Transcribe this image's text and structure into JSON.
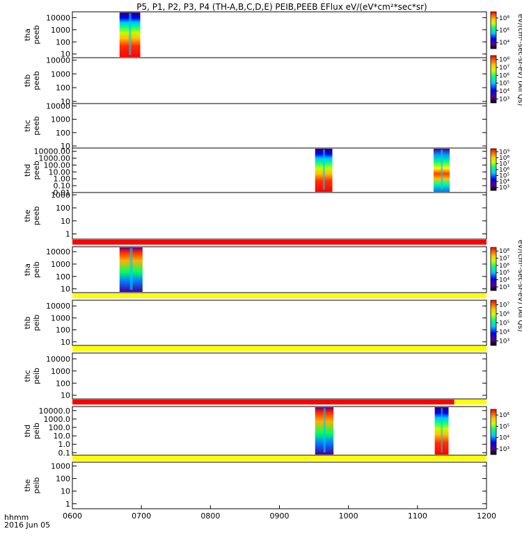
{
  "chart_data": {
    "type": "heatmap",
    "title": "P5, P1, P2, P3, P4 (TH-A,B,C,D,E) PEIB,PEEB EFlux eV/(eV*cm²*sec*sr)",
    "x_axis": {
      "range": [
        "0600",
        "1200"
      ],
      "ticks": [
        "0600",
        "0700",
        "0800",
        "0900",
        "1000",
        "1100",
        "1200"
      ],
      "label_top": "hhmm",
      "label_bottom": "2016 Jun 05"
    },
    "colorbar_units": [
      "eV/(cm²-sec-sr-eV) (All Qs)",
      "eV/(cm²-sec-sr-eV) (All Qs)"
    ],
    "panels": [
      {
        "label": [
          "tha",
          "peeb"
        ],
        "y_ticks": [
          "10",
          "100",
          "1000",
          "10000"
        ],
        "y_range": [
          5,
          30000
        ],
        "colorbar_ticks": [
          "10⁴",
          "10⁶",
          "10⁸"
        ],
        "data_intervals": [
          [
            "0641",
            "0659"
          ]
        ]
      },
      {
        "label": [
          "thb",
          "peeb"
        ],
        "y_ticks": [
          "10",
          "100",
          "1000",
          "10000"
        ],
        "y_range": [
          7,
          15000
        ],
        "colorbar_ticks": [
          "10³",
          "10⁴",
          "10⁵",
          "10⁶",
          "10⁷",
          "10⁸"
        ],
        "data_intervals": []
      },
      {
        "label": [
          "thc",
          "peeb"
        ],
        "y_ticks": [
          "10",
          "100",
          "1000",
          "10000"
        ],
        "y_range": [
          7,
          15000
        ],
        "colorbar_ticks": [],
        "data_intervals": []
      },
      {
        "label": [
          "thd",
          "peeb"
        ],
        "y_ticks": [
          "0.01",
          "0.10",
          "1.00",
          "10.00",
          "100.00",
          "1000.00",
          "10000.00"
        ],
        "y_range": [
          0.01,
          30000
        ],
        "colorbar_ticks": [
          "10³",
          "10⁴",
          "10⁵",
          "10⁶",
          "10⁷",
          "10⁸",
          "10⁹"
        ],
        "data_intervals": [
          [
            "0931",
            "0946"
          ],
          [
            "1074",
            "1088"
          ]
        ]
      },
      {
        "label": [
          "the",
          "peeb"
        ],
        "y_ticks": [
          "1",
          "10",
          "100",
          "1000"
        ],
        "y_range": [
          0.4,
          1500
        ],
        "colorbar_ticks": [],
        "data_intervals": []
      },
      {
        "label": [
          "tha",
          "peib"
        ],
        "y_ticks": [
          "10",
          "100",
          "1000",
          "10000"
        ],
        "y_range": [
          5,
          25000
        ],
        "colorbar_ticks": [
          "10³",
          "10⁴",
          "10⁵",
          "10⁶",
          "10⁷",
          "10⁸"
        ],
        "data_intervals": [
          [
            "0641",
            "0661"
          ]
        ]
      },
      {
        "label": [
          "thb",
          "peib"
        ],
        "y_ticks": [
          "10",
          "100",
          "1000",
          "10000"
        ],
        "y_range": [
          5,
          30000
        ],
        "colorbar_ticks": [
          "10³",
          "10⁴",
          "10⁵",
          "10⁶",
          "10⁷"
        ],
        "data_intervals": []
      },
      {
        "label": [
          "thc",
          "peib"
        ],
        "y_ticks": [
          "10",
          "100",
          "1000",
          "10000"
        ],
        "y_range": [
          5,
          30000
        ],
        "colorbar_ticks": [],
        "data_intervals": []
      },
      {
        "label": [
          "thd",
          "peib"
        ],
        "y_ticks": [
          "0.1",
          "1.0",
          "10.0",
          "100.0",
          "1000.0",
          "10000.0"
        ],
        "y_range": [
          0.05,
          30000
        ],
        "colorbar_ticks": [
          "10³",
          "10⁴",
          "10⁵",
          "10⁶"
        ],
        "data_intervals": [
          [
            "0931",
            "0947"
          ],
          [
            "1075",
            "1087"
          ]
        ]
      },
      {
        "label": [
          "the",
          "peib"
        ],
        "y_ticks": [
          "1",
          "10",
          "100",
          "1000"
        ],
        "y_range": [
          0.4,
          2000
        ],
        "colorbar_ticks": [],
        "data_intervals": []
      }
    ],
    "flag_bars": [
      {
        "after_panel": 5,
        "segments": [
          {
            "from": "0600",
            "to": "1200",
            "color": "#ff0000"
          }
        ]
      },
      {
        "after_panel": 6,
        "segments": [
          {
            "from": "0600",
            "to": "1200",
            "color": "#ffff00"
          }
        ]
      },
      {
        "after_panel": 7,
        "segments": [
          {
            "from": "0600",
            "to": "1200",
            "color": "#ffff00"
          }
        ]
      },
      {
        "after_panel": 8,
        "segments": [
          {
            "from": "0600",
            "to": "1092",
            "color": "#ff0000"
          },
          {
            "from": "1092",
            "to": "1200",
            "color": "#ffff00"
          }
        ]
      },
      {
        "after_panel": 9,
        "segments": [
          {
            "from": "0600",
            "to": "1200",
            "color": "#ffff00"
          }
        ]
      }
    ]
  }
}
